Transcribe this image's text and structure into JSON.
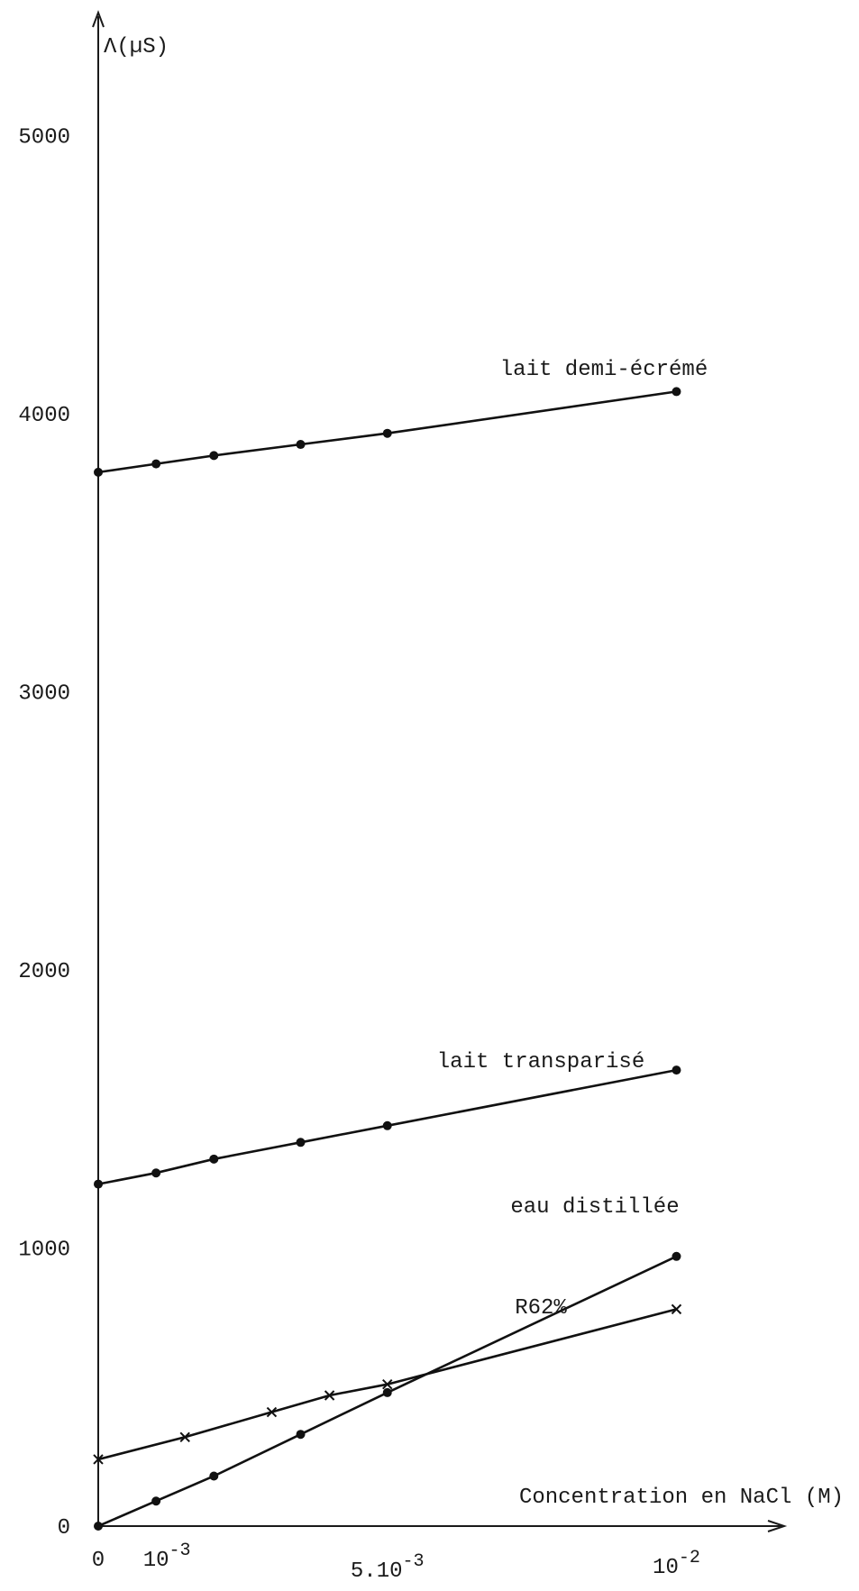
{
  "chart_data": {
    "type": "line",
    "title": "",
    "ylabel": "Λ(µS)",
    "xlabel": "Concentration en NaCl (M)",
    "xlim": [
      0,
      0.0123
    ],
    "ylim": [
      0,
      5430
    ],
    "grid": false,
    "y_ticks": [
      {
        "value": 0,
        "label": "0"
      },
      {
        "value": 1000,
        "label": "1000"
      },
      {
        "value": 2000,
        "label": "2000"
      },
      {
        "value": 3000,
        "label": "3000"
      },
      {
        "value": 4000,
        "label": "4000"
      },
      {
        "value": 5000,
        "label": "5000"
      }
    ],
    "x_ticks": [
      {
        "value": 0,
        "base": "0",
        "exp": ""
      },
      {
        "value": 0.001,
        "base": "10",
        "exp": "-3"
      },
      {
        "value": 0.005,
        "base": "5.10",
        "exp": "-3"
      },
      {
        "value": 0.01,
        "base": "10",
        "exp": "-2"
      }
    ],
    "series": [
      {
        "name": "lait demi-écrémé",
        "marker": "dot",
        "x": [
          0,
          0.001,
          0.002,
          0.0035,
          0.005,
          0.01
        ],
        "y": [
          3790,
          3820,
          3850,
          3890,
          3930,
          4080
        ]
      },
      {
        "name": "lait transparisé",
        "marker": "dot",
        "x": [
          0,
          0.001,
          0.002,
          0.0035,
          0.005,
          0.01
        ],
        "y": [
          1230,
          1270,
          1320,
          1380,
          1440,
          1640
        ]
      },
      {
        "name": "eau distillée",
        "marker": "dot",
        "x": [
          0,
          0.001,
          0.002,
          0.0035,
          0.005,
          0.01
        ],
        "y": [
          0,
          90,
          180,
          330,
          480,
          970
        ]
      },
      {
        "name": "R62%",
        "marker": "cross",
        "x": [
          0,
          0.0015,
          0.003,
          0.004,
          0.005,
          0.01
        ],
        "y": [
          240,
          320,
          410,
          470,
          510,
          780
        ]
      }
    ]
  }
}
